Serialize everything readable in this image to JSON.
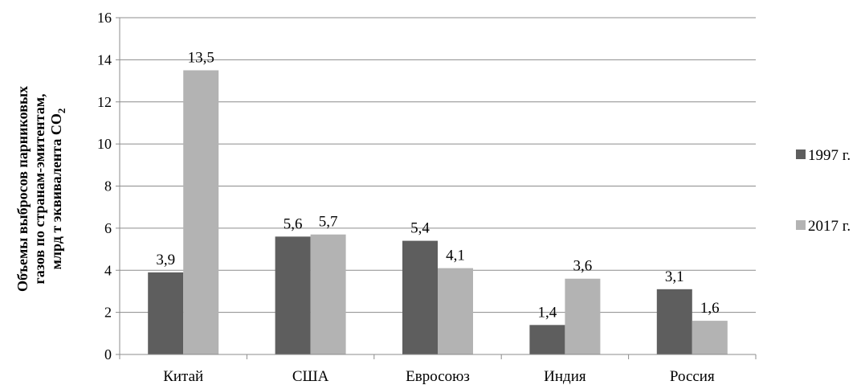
{
  "chart_data": {
    "type": "bar",
    "categories": [
      "Китай",
      "США",
      "Евросоюз",
      "Индия",
      "Россия"
    ],
    "series": [
      {
        "name": "1997 г.",
        "values": [
          3.9,
          5.6,
          5.4,
          1.4,
          3.1
        ],
        "labels": [
          "3,9",
          "5,6",
          "5,4",
          "1,4",
          "3,1"
        ],
        "color": "#5e5e5e"
      },
      {
        "name": "2017 г.",
        "values": [
          13.5,
          5.7,
          4.1,
          3.6,
          1.6
        ],
        "labels": [
          "13,5",
          "5,7",
          "4,1",
          "3,6",
          "1,6"
        ],
        "color": "#b3b3b3"
      }
    ],
    "ylabel_lines": [
      "Объемы выбросов парниковых",
      "газов по странам-эмитентам,",
      "млрд т эквивалента CO"
    ],
    "ylabel_subscript": "2",
    "ylim": [
      0,
      16
    ],
    "yticks": [
      "0",
      "2",
      "4",
      "6",
      "8",
      "10",
      "12",
      "14",
      "16"
    ],
    "grid": true,
    "legend": "right"
  }
}
